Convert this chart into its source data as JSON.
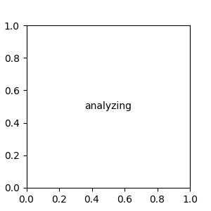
{
  "bg_color": "#e8e8e8",
  "bond_color": "#3a3a3a",
  "N_color": "#0000cc",
  "O_color": "#cc0000",
  "C_color": "#3a3a3a",
  "figsize": [
    3.0,
    3.0
  ],
  "dpi": 100,
  "lw": 1.5,
  "font_size": 8.5,
  "font_size_small": 7.5
}
